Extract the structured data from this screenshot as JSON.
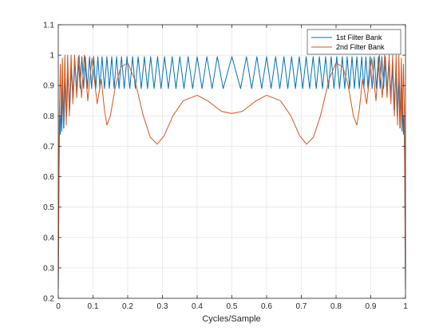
{
  "chart_data": {
    "type": "line",
    "title": "",
    "xlabel": "Cycles/Sample",
    "ylabel": "",
    "xlim": [
      0,
      1
    ],
    "ylim": [
      0.2,
      1.1
    ],
    "x_ticks": [
      "0",
      "0.1",
      "0.2",
      "0.3",
      "0.4",
      "0.5",
      "0.6",
      "0.7",
      "0.8",
      "0.9",
      "1"
    ],
    "y_ticks": [
      "0.2",
      "0.3",
      "0.4",
      "0.5",
      "0.6",
      "0.7",
      "0.8",
      "0.9",
      "1",
      "1.1"
    ],
    "grid": true,
    "legend_position": "top-right",
    "series": [
      {
        "name": "1st Filter Bank",
        "color": "#0072BD",
        "points": [
          [
            0.0,
            0.23
          ],
          [
            0.002,
            0.58
          ],
          [
            0.004,
            0.8
          ],
          [
            0.006,
            0.74
          ],
          [
            0.008,
            0.86
          ],
          [
            0.01,
            0.75
          ],
          [
            0.013,
            0.9
          ],
          [
            0.016,
            0.76
          ],
          [
            0.02,
            0.92
          ],
          [
            0.024,
            0.8
          ],
          [
            0.028,
            0.94
          ],
          [
            0.033,
            0.82
          ],
          [
            0.038,
            0.96
          ],
          [
            0.043,
            0.86
          ],
          [
            0.048,
            0.98
          ],
          [
            0.053,
            0.88
          ],
          [
            0.058,
            0.995
          ],
          [
            0.063,
            0.89
          ],
          [
            0.068,
            0.995
          ],
          [
            0.073,
            0.89
          ],
          [
            0.078,
            0.995
          ],
          [
            0.084,
            0.89
          ],
          [
            0.09,
            0.995
          ],
          [
            0.096,
            0.89
          ],
          [
            0.102,
            0.995
          ],
          [
            0.108,
            0.89
          ],
          [
            0.114,
            0.995
          ],
          [
            0.12,
            0.89
          ],
          [
            0.126,
            0.995
          ],
          [
            0.133,
            0.89
          ],
          [
            0.14,
            0.995
          ],
          [
            0.147,
            0.89
          ],
          [
            0.154,
            0.995
          ],
          [
            0.161,
            0.89
          ],
          [
            0.168,
            0.995
          ],
          [
            0.175,
            0.89
          ],
          [
            0.182,
            0.995
          ],
          [
            0.19,
            0.89
          ],
          [
            0.198,
            0.995
          ],
          [
            0.206,
            0.89
          ],
          [
            0.214,
            0.995
          ],
          [
            0.222,
            0.89
          ],
          [
            0.23,
            0.995
          ],
          [
            0.239,
            0.89
          ],
          [
            0.248,
            0.995
          ],
          [
            0.257,
            0.89
          ],
          [
            0.266,
            0.995
          ],
          [
            0.276,
            0.89
          ],
          [
            0.286,
            0.995
          ],
          [
            0.296,
            0.89
          ],
          [
            0.306,
            0.995
          ],
          [
            0.317,
            0.89
          ],
          [
            0.328,
            0.995
          ],
          [
            0.339,
            0.89
          ],
          [
            0.35,
            0.995
          ],
          [
            0.362,
            0.89
          ],
          [
            0.374,
            0.995
          ],
          [
            0.387,
            0.89
          ],
          [
            0.4,
            0.995
          ],
          [
            0.414,
            0.89
          ],
          [
            0.428,
            0.995
          ],
          [
            0.443,
            0.89
          ],
          [
            0.458,
            0.995
          ],
          [
            0.475,
            0.89
          ],
          [
            0.5,
            0.995
          ],
          [
            0.525,
            0.89
          ],
          [
            0.542,
            0.995
          ],
          [
            0.557,
            0.89
          ],
          [
            0.572,
            0.995
          ],
          [
            0.586,
            0.89
          ],
          [
            0.6,
            0.995
          ],
          [
            0.613,
            0.89
          ],
          [
            0.626,
            0.995
          ],
          [
            0.638,
            0.89
          ],
          [
            0.65,
            0.995
          ],
          [
            0.661,
            0.89
          ],
          [
            0.672,
            0.995
          ],
          [
            0.683,
            0.89
          ],
          [
            0.694,
            0.995
          ],
          [
            0.704,
            0.89
          ],
          [
            0.714,
            0.995
          ],
          [
            0.724,
            0.89
          ],
          [
            0.734,
            0.995
          ],
          [
            0.743,
            0.89
          ],
          [
            0.752,
            0.995
          ],
          [
            0.761,
            0.89
          ],
          [
            0.77,
            0.995
          ],
          [
            0.778,
            0.89
          ],
          [
            0.786,
            0.995
          ],
          [
            0.794,
            0.89
          ],
          [
            0.802,
            0.995
          ],
          [
            0.81,
            0.89
          ],
          [
            0.818,
            0.995
          ],
          [
            0.825,
            0.89
          ],
          [
            0.832,
            0.995
          ],
          [
            0.839,
            0.89
          ],
          [
            0.846,
            0.995
          ],
          [
            0.853,
            0.89
          ],
          [
            0.86,
            0.995
          ],
          [
            0.867,
            0.89
          ],
          [
            0.874,
            0.995
          ],
          [
            0.88,
            0.89
          ],
          [
            0.886,
            0.995
          ],
          [
            0.892,
            0.89
          ],
          [
            0.898,
            0.995
          ],
          [
            0.904,
            0.89
          ],
          [
            0.91,
            0.995
          ],
          [
            0.916,
            0.89
          ],
          [
            0.922,
            0.995
          ],
          [
            0.927,
            0.89
          ],
          [
            0.932,
            0.995
          ],
          [
            0.937,
            0.89
          ],
          [
            0.942,
            0.995
          ],
          [
            0.947,
            0.88
          ],
          [
            0.952,
            0.98
          ],
          [
            0.957,
            0.86
          ],
          [
            0.962,
            0.96
          ],
          [
            0.967,
            0.82
          ],
          [
            0.972,
            0.94
          ],
          [
            0.976,
            0.8
          ],
          [
            0.98,
            0.92
          ],
          [
            0.984,
            0.76
          ],
          [
            0.987,
            0.9
          ],
          [
            0.99,
            0.75
          ],
          [
            0.992,
            0.86
          ],
          [
            0.994,
            0.74
          ],
          [
            0.996,
            0.8
          ],
          [
            0.998,
            0.58
          ],
          [
            1.0,
            0.23
          ]
        ]
      },
      {
        "name": "2nd Filter Bank",
        "color": "#D95319",
        "points": [
          [
            0.0,
            0.24
          ],
          [
            0.003,
            0.8
          ],
          [
            0.006,
            0.97
          ],
          [
            0.009,
            0.79
          ],
          [
            0.012,
            0.99
          ],
          [
            0.015,
            0.76
          ],
          [
            0.019,
            1.0
          ],
          [
            0.023,
            0.77
          ],
          [
            0.027,
            1.0
          ],
          [
            0.032,
            0.8
          ],
          [
            0.037,
            1.0
          ],
          [
            0.042,
            0.84
          ],
          [
            0.047,
            1.0
          ],
          [
            0.053,
            0.86
          ],
          [
            0.06,
            1.0
          ],
          [
            0.067,
            0.86
          ],
          [
            0.075,
            1.0
          ],
          [
            0.085,
            0.85
          ],
          [
            0.097,
            0.99
          ],
          [
            0.112,
            0.84
          ],
          [
            0.124,
            0.92
          ],
          [
            0.133,
            0.82
          ],
          [
            0.14,
            0.77
          ],
          [
            0.15,
            0.8
          ],
          [
            0.165,
            0.9
          ],
          [
            0.18,
            0.96
          ],
          [
            0.2,
            0.975
          ],
          [
            0.22,
            0.92
          ],
          [
            0.245,
            0.8
          ],
          [
            0.265,
            0.73
          ],
          [
            0.285,
            0.707
          ],
          [
            0.305,
            0.735
          ],
          [
            0.33,
            0.8
          ],
          [
            0.36,
            0.85
          ],
          [
            0.4,
            0.868
          ],
          [
            0.43,
            0.85
          ],
          [
            0.47,
            0.815
          ],
          [
            0.5,
            0.808
          ],
          [
            0.53,
            0.815
          ],
          [
            0.57,
            0.85
          ],
          [
            0.6,
            0.868
          ],
          [
            0.64,
            0.85
          ],
          [
            0.67,
            0.8
          ],
          [
            0.695,
            0.735
          ],
          [
            0.715,
            0.707
          ],
          [
            0.735,
            0.73
          ],
          [
            0.755,
            0.8
          ],
          [
            0.78,
            0.92
          ],
          [
            0.8,
            0.975
          ],
          [
            0.82,
            0.96
          ],
          [
            0.835,
            0.9
          ],
          [
            0.85,
            0.8
          ],
          [
            0.86,
            0.77
          ],
          [
            0.867,
            0.82
          ],
          [
            0.876,
            0.92
          ],
          [
            0.888,
            0.84
          ],
          [
            0.903,
            0.99
          ],
          [
            0.915,
            0.85
          ],
          [
            0.925,
            1.0
          ],
          [
            0.933,
            0.86
          ],
          [
            0.94,
            1.0
          ],
          [
            0.947,
            0.86
          ],
          [
            0.953,
            1.0
          ],
          [
            0.958,
            0.84
          ],
          [
            0.963,
            1.0
          ],
          [
            0.968,
            0.8
          ],
          [
            0.973,
            1.0
          ],
          [
            0.977,
            0.77
          ],
          [
            0.981,
            1.0
          ],
          [
            0.985,
            0.76
          ],
          [
            0.988,
            0.99
          ],
          [
            0.991,
            0.79
          ],
          [
            0.994,
            0.97
          ],
          [
            0.997,
            0.8
          ],
          [
            1.0,
            0.24
          ]
        ]
      }
    ]
  }
}
